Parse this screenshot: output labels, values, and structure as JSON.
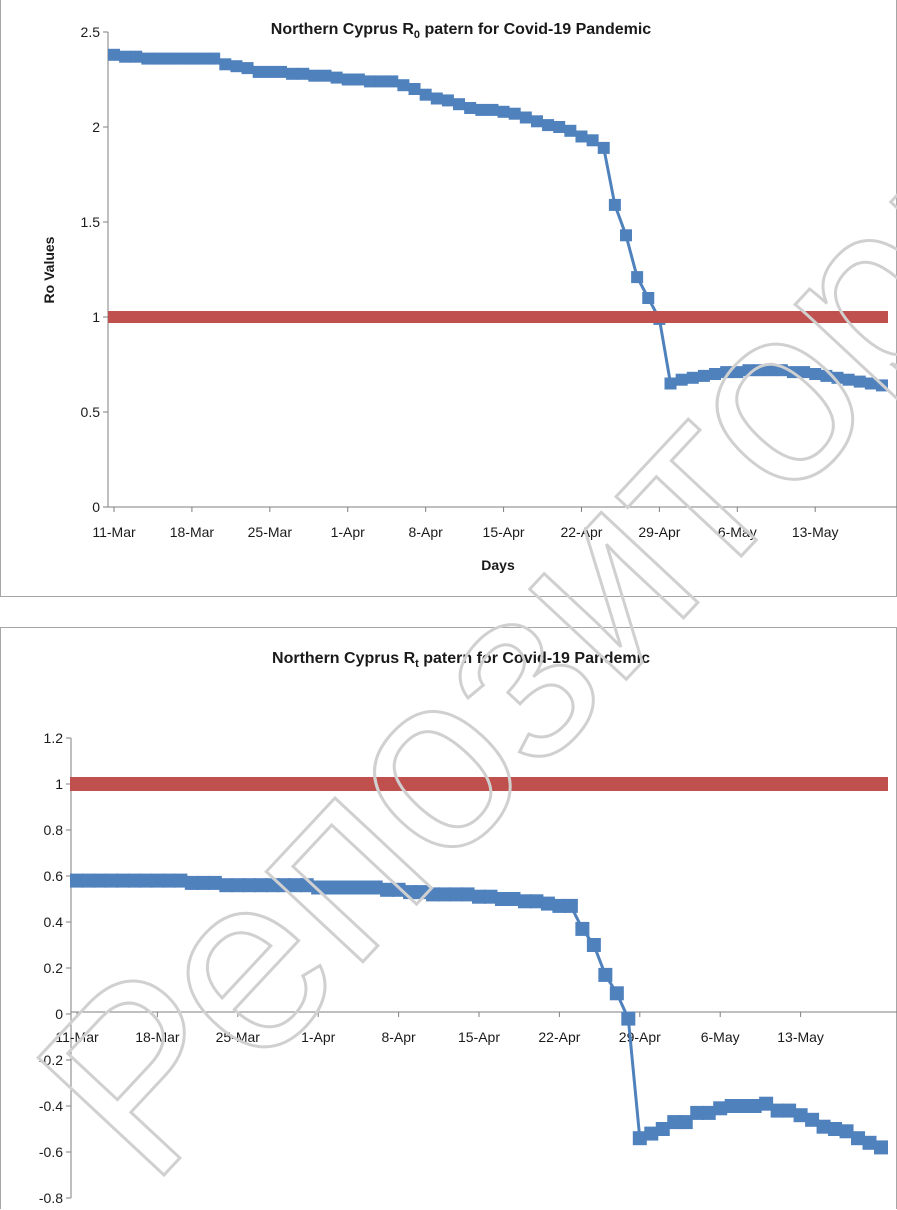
{
  "chart_data": [
    {
      "type": "line",
      "title_main": "Northern Cyprus R",
      "title_sub": "0",
      "title_rest": " patern for Covid-19 Pandemic",
      "xlabel": "Days",
      "ylabel": "Ro Values",
      "ylim": [
        0,
        2.5
      ],
      "yticks": [
        "0",
        "0.5",
        "1",
        "1.5",
        "2",
        "2.5"
      ],
      "yticks_values": [
        0,
        0.5,
        1,
        1.5,
        2,
        2.5
      ],
      "xticks": [
        "11-Mar",
        "18-Mar",
        "25-Mar",
        "1-Apr",
        "8-Apr",
        "15-Apr",
        "22-Apr",
        "29-Apr",
        "6-May",
        "13-May"
      ],
      "x_start": "11-Mar",
      "grid": false,
      "series": [
        {
          "color": "#4f81bd",
          "values": [
            2.38,
            2.37,
            2.37,
            2.36,
            2.36,
            2.36,
            2.36,
            2.36,
            2.36,
            2.36,
            2.33,
            2.32,
            2.31,
            2.29,
            2.29,
            2.29,
            2.28,
            2.28,
            2.27,
            2.27,
            2.26,
            2.25,
            2.25,
            2.24,
            2.24,
            2.24,
            2.22,
            2.2,
            2.17,
            2.15,
            2.14,
            2.12,
            2.1,
            2.09,
            2.09,
            2.08,
            2.07,
            2.05,
            2.03,
            2.01,
            2.0,
            1.98,
            1.95,
            1.93,
            1.89,
            1.59,
            1.43,
            1.21,
            1.1,
            0.99,
            0.65,
            0.67,
            0.68,
            0.69,
            0.7,
            0.71,
            0.71,
            0.72,
            0.72,
            0.72,
            0.72,
            0.71,
            0.71,
            0.7,
            0.69,
            0.68,
            0.67,
            0.66,
            0.65,
            0.64
          ]
        },
        {
          "color": "#c0504d",
          "values": [
            1,
            1,
            1,
            1,
            1,
            1,
            1,
            1,
            1,
            1,
            1,
            1,
            1,
            1,
            1,
            1,
            1,
            1,
            1,
            1,
            1,
            1,
            1,
            1,
            1,
            1,
            1,
            1,
            1,
            1,
            1,
            1,
            1,
            1,
            1,
            1,
            1,
            1,
            1,
            1,
            1,
            1,
            1,
            1,
            1,
            1,
            1,
            1,
            1,
            1,
            1,
            1,
            1,
            1,
            1,
            1,
            1,
            1,
            1,
            1,
            1,
            1,
            1,
            1,
            1,
            1,
            1,
            1,
            1,
            1
          ]
        }
      ]
    },
    {
      "type": "line",
      "title_main": "Northern Cyprus R",
      "title_sub": "t",
      "title_rest": " patern for Covid-19 Pandemic",
      "xlabel": "",
      "ylabel": "",
      "ylim": [
        -0.8,
        1.2
      ],
      "yticks": [
        "-0.8",
        "-0.6",
        "-0.4",
        "-0.2",
        "0",
        "0.2",
        "0.4",
        "0.6",
        "0.8",
        "1",
        "1.2"
      ],
      "yticks_values": [
        -0.8,
        -0.6,
        -0.4,
        -0.2,
        0,
        0.2,
        0.4,
        0.6,
        0.8,
        1,
        1.2
      ],
      "xticks": [
        "11-Mar",
        "18-Mar",
        "25-Mar",
        "1-Apr",
        "8-Apr",
        "15-Apr",
        "22-Apr",
        "29-Apr",
        "6-May",
        "13-May"
      ],
      "x_start": "11-Mar",
      "grid": false,
      "series": [
        {
          "color": "#4f81bd",
          "values": [
            0.58,
            0.58,
            0.58,
            0.58,
            0.58,
            0.58,
            0.58,
            0.58,
            0.58,
            0.58,
            0.57,
            0.57,
            0.57,
            0.56,
            0.56,
            0.56,
            0.56,
            0.56,
            0.56,
            0.56,
            0.56,
            0.55,
            0.55,
            0.55,
            0.55,
            0.55,
            0.55,
            0.54,
            0.54,
            0.53,
            0.53,
            0.52,
            0.52,
            0.52,
            0.52,
            0.51,
            0.51,
            0.5,
            0.5,
            0.49,
            0.49,
            0.48,
            0.47,
            0.47,
            0.37,
            0.3,
            0.17,
            0.09,
            -0.02,
            -0.54,
            -0.52,
            -0.5,
            -0.47,
            -0.47,
            -0.43,
            -0.43,
            -0.41,
            -0.4,
            -0.4,
            -0.4,
            -0.39,
            -0.42,
            -0.42,
            -0.44,
            -0.46,
            -0.49,
            -0.5,
            -0.51,
            -0.54,
            -0.56,
            -0.58
          ]
        },
        {
          "color": "#c0504d",
          "values": [
            1,
            1,
            1,
            1,
            1,
            1,
            1,
            1,
            1,
            1,
            1,
            1,
            1,
            1,
            1,
            1,
            1,
            1,
            1,
            1,
            1,
            1,
            1,
            1,
            1,
            1,
            1,
            1,
            1,
            1,
            1,
            1,
            1,
            1,
            1,
            1,
            1,
            1,
            1,
            1,
            1,
            1,
            1,
            1,
            1,
            1,
            1,
            1,
            1,
            1,
            1,
            1,
            1,
            1,
            1,
            1,
            1,
            1,
            1,
            1,
            1,
            1,
            1,
            1,
            1,
            1,
            1,
            1,
            1,
            1,
            1
          ]
        }
      ]
    }
  ],
  "watermark": "Репозиторий Кар"
}
